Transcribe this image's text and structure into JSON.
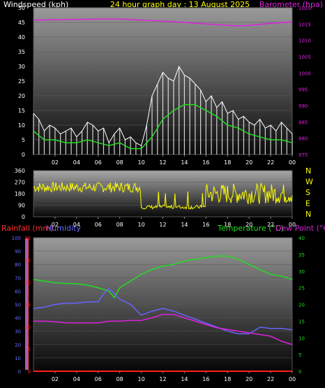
{
  "header": {
    "title": "24 hour graph day : 13 August 2025",
    "left_label": "Windspeed (kph)",
    "right_label": "Barometer (hpa)"
  },
  "colors": {
    "background": "#000000",
    "wind_gust": "#ffffff",
    "wind_avg": "#22dd22",
    "barometer": "#dd22dd",
    "direction": "#ffff00",
    "rain": "#ff2020",
    "humidity": "#6666ff",
    "temperature": "#22dd22",
    "dewpoint": "#dd22dd",
    "title": "#ffff00"
  },
  "chart_data": [
    {
      "type": "line",
      "name": "wind_barometer",
      "x_ticks": [
        "02",
        "04",
        "06",
        "08",
        "10",
        "12",
        "14",
        "16",
        "18",
        "20",
        "22",
        "00"
      ],
      "xlim": [
        0,
        24
      ],
      "ylim_left": [
        0,
        50
      ],
      "y_ticks_left": [
        0,
        5,
        10,
        15,
        20,
        25,
        30,
        35,
        40,
        45,
        50
      ],
      "ylim_right": [
        975,
        1020
      ],
      "y_ticks_right": [
        975,
        980,
        985,
        990,
        995,
        1000,
        1005,
        1010,
        1015,
        1020
      ],
      "series": [
        {
          "key": "gust",
          "x": [
            0,
            0.5,
            1,
            1.5,
            2,
            2.5,
            3,
            3.5,
            4,
            4.5,
            5,
            5.5,
            6,
            6.5,
            7,
            7.5,
            8,
            8.5,
            9,
            9.5,
            10,
            10.5,
            11,
            11.5,
            12,
            12.5,
            13,
            13.5,
            14,
            14.5,
            15,
            15.5,
            16,
            16.5,
            17,
            17.5,
            18,
            18.5,
            19,
            19.5,
            20,
            20.5,
            21,
            21.5,
            22,
            22.5,
            23,
            23.5,
            24
          ],
          "y": [
            14,
            12,
            8,
            10,
            9,
            7,
            8,
            9,
            6,
            8,
            11,
            10,
            8,
            9,
            4,
            7,
            9,
            5,
            6,
            4,
            3,
            10,
            20,
            24,
            28,
            26,
            25,
            30,
            27,
            26,
            24,
            22,
            18,
            20,
            16,
            18,
            14,
            15,
            12,
            13,
            11,
            10,
            12,
            9,
            10,
            8,
            11,
            9,
            7
          ]
        },
        {
          "key": "avg",
          "x": [
            0,
            1,
            2,
            3,
            4,
            5,
            6,
            7,
            8,
            9,
            10,
            11,
            12,
            13,
            14,
            15,
            16,
            17,
            18,
            19,
            20,
            21,
            22,
            23,
            24
          ],
          "y": [
            8,
            5,
            5,
            4,
            4,
            5,
            4,
            3,
            4,
            2,
            2,
            6,
            12,
            15,
            17,
            17,
            15,
            13,
            10,
            9,
            7,
            6,
            5,
            5,
            4
          ]
        },
        {
          "key": "barometer",
          "x": [
            0,
            2,
            4,
            6,
            8,
            10,
            12,
            14,
            16,
            18,
            19,
            20,
            22,
            24
          ],
          "y": [
            1016.2,
            1016.3,
            1016.4,
            1016.5,
            1016.5,
            1016.2,
            1015.9,
            1015.5,
            1015.0,
            1014.6,
            1014.4,
            1014.6,
            1015.2,
            1015.6
          ]
        }
      ]
    },
    {
      "type": "line",
      "name": "wind_direction",
      "x_ticks": [
        "02",
        "04",
        "06",
        "08",
        "10",
        "12",
        "14",
        "16",
        "18",
        "20",
        "22",
        "00"
      ],
      "xlim": [
        0,
        24
      ],
      "ylim": [
        0,
        360
      ],
      "y_ticks": [
        0,
        90,
        180,
        270,
        360
      ],
      "compass": [
        "N",
        "W",
        "S",
        "E",
        "N"
      ]
    },
    {
      "type": "line",
      "name": "temp_humidity",
      "labels": {
        "rain": "Rainfall (mm)",
        "humidity": "Humidity",
        "temperature": "Temperature (°C)",
        "dewpoint": "Dew Point (°C)"
      },
      "x_ticks": [
        "02",
        "04",
        "06",
        "08",
        "10",
        "12",
        "14",
        "16",
        "18",
        "20",
        "22",
        "00"
      ],
      "xlim": [
        0,
        24
      ],
      "humidity_ticks": [
        0,
        10,
        20,
        30,
        40,
        50,
        60,
        70,
        80,
        90,
        100
      ],
      "rain_ticks": [
        0,
        5,
        10,
        15,
        20,
        25,
        30
      ],
      "temp_ticks": [
        0,
        5,
        10,
        15,
        20,
        25,
        30,
        35,
        40
      ],
      "series": [
        {
          "key": "temperature",
          "x": [
            0,
            1,
            2,
            3,
            4,
            5,
            6,
            7,
            7.5,
            8,
            9,
            10,
            11,
            12,
            13,
            14,
            15,
            16,
            17,
            18,
            19,
            20,
            21,
            22,
            23,
            24
          ],
          "y": [
            27.5,
            27,
            26.5,
            26.3,
            26.2,
            25.8,
            25,
            24,
            22,
            25,
            27,
            29,
            30.5,
            31.5,
            32,
            33,
            33.5,
            34,
            34.5,
            34.5,
            33.5,
            32,
            30.5,
            29,
            28.5,
            27.5
          ]
        },
        {
          "key": "humidity",
          "x": [
            0,
            1,
            2,
            3,
            4,
            5,
            6,
            6.5,
            7,
            7.5,
            8,
            9,
            10,
            11,
            12,
            13,
            14,
            15,
            16,
            17,
            18,
            19,
            20,
            21,
            22,
            23,
            24
          ],
          "y": [
            47,
            48,
            50,
            51,
            51,
            52,
            52,
            58,
            62,
            58,
            54,
            50,
            42,
            45,
            47,
            45,
            42,
            39,
            36,
            33,
            30,
            28,
            28,
            33,
            32,
            32,
            31
          ]
        },
        {
          "key": "dewpoint",
          "x": [
            0,
            1,
            2,
            3,
            4,
            5,
            6,
            7,
            8,
            9,
            10,
            11,
            12,
            13,
            14,
            15,
            16,
            17,
            18,
            19,
            20,
            21,
            22,
            23,
            24
          ],
          "y": [
            15,
            15,
            14.8,
            14.5,
            14.5,
            14.5,
            14.5,
            15,
            15,
            15.2,
            15.2,
            16,
            17,
            17,
            16,
            15,
            14,
            13,
            12.5,
            12,
            11.5,
            11,
            10.5,
            9,
            8
          ]
        },
        {
          "key": "rain",
          "x": [
            0,
            24
          ],
          "y": [
            0,
            0
          ]
        }
      ]
    }
  ]
}
